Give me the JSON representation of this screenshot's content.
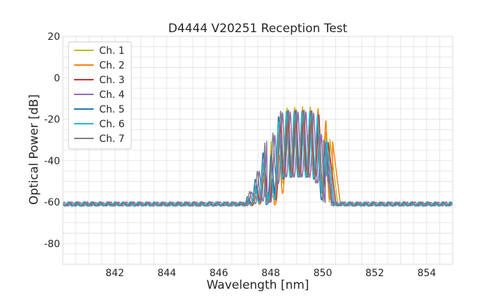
{
  "chart_data": {
    "type": "line",
    "title": "D4444 V20251 Reception Test",
    "xlabel": "Wavelength [nm]",
    "ylabel": "Optical Power [dB]",
    "xlim": [
      840.0,
      855.0
    ],
    "ylim": [
      -90,
      20
    ],
    "xticks": [
      842,
      844,
      846,
      848,
      850,
      852,
      854
    ],
    "yticks": [
      -80,
      -60,
      -40,
      -20,
      0,
      20
    ],
    "grid": true,
    "legend_position": "top-left",
    "series": [
      {
        "name": "Ch. 1",
        "color": "#bcbd22",
        "baseline": -66.0,
        "center": 849.22,
        "peak": -14.5
      },
      {
        "name": "Ch. 2",
        "color": "#ff7f0e",
        "baseline": -66.5,
        "center": 849.32,
        "peak": -16.0
      },
      {
        "name": "Ch. 3",
        "color": "#d62728",
        "baseline": -67.2,
        "center": 849.15,
        "peak": -16.5
      },
      {
        "name": "Ch. 4",
        "color": "#9467bd",
        "baseline": -67.6,
        "center": 849.05,
        "peak": -17.0
      },
      {
        "name": "Ch. 5",
        "color": "#1f77b4",
        "baseline": -68.2,
        "center": 849.0,
        "peak": -17.5
      },
      {
        "name": "Ch. 6",
        "color": "#17becf",
        "baseline": -67.4,
        "center": 849.1,
        "peak": -16.5
      },
      {
        "name": "Ch. 7",
        "color": "#7f7f7f",
        "baseline": -65.3,
        "center": 848.98,
        "peak": -16.0
      }
    ]
  }
}
